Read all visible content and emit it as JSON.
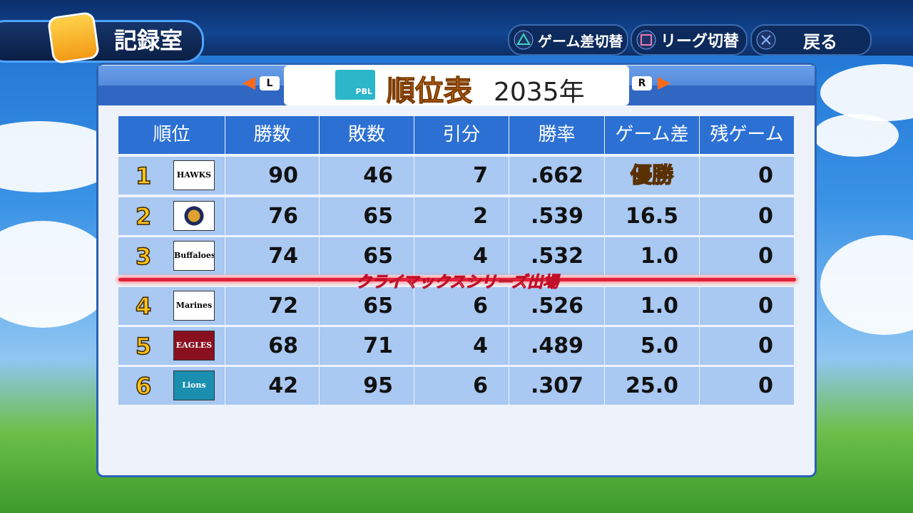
{
  "header": {
    "title": "記録室",
    "buttons": [
      {
        "label": "ゲーム差切替"
      },
      {
        "label": "リーグ切替"
      },
      {
        "label": "戻る"
      }
    ]
  },
  "banner": {
    "prev": "L",
    "next": "R",
    "league": "PBL",
    "title": "順位表",
    "year": "2035年"
  },
  "table": {
    "columns": [
      "順位",
      "勝数",
      "敗数",
      "引分",
      "勝率",
      "ゲーム差",
      "残ゲーム"
    ],
    "rows": [
      {
        "rank": "1",
        "logo": "HAWKS",
        "wins": "90",
        "losses": "46",
        "draws": "7",
        "pct": ".662",
        "games_behind": "優勝",
        "remaining": "0"
      },
      {
        "rank": "2",
        "wins": "76",
        "losses": "65",
        "draws": "2",
        "pct": ".539",
        "games_behind": "16.5",
        "remaining": "0"
      },
      {
        "rank": "3",
        "logo": "Buffaloes",
        "wins": "74",
        "losses": "65",
        "draws": "4",
        "pct": ".532",
        "games_behind": "1.0",
        "remaining": "0"
      },
      {
        "rank": "4",
        "logo": "Marines",
        "wins": "72",
        "losses": "65",
        "draws": "6",
        "pct": ".526",
        "games_behind": "1.0",
        "remaining": "0"
      },
      {
        "rank": "5",
        "logo": "EAGLES",
        "wins": "68",
        "losses": "71",
        "draws": "4",
        "pct": ".489",
        "games_behind": "5.0",
        "remaining": "0"
      },
      {
        "rank": "6",
        "logo": "Lions",
        "wins": "42",
        "losses": "95",
        "draws": "6",
        "pct": ".307",
        "games_behind": "25.0",
        "remaining": "0"
      }
    ],
    "divider": "クライマックスシリーズ出場"
  }
}
